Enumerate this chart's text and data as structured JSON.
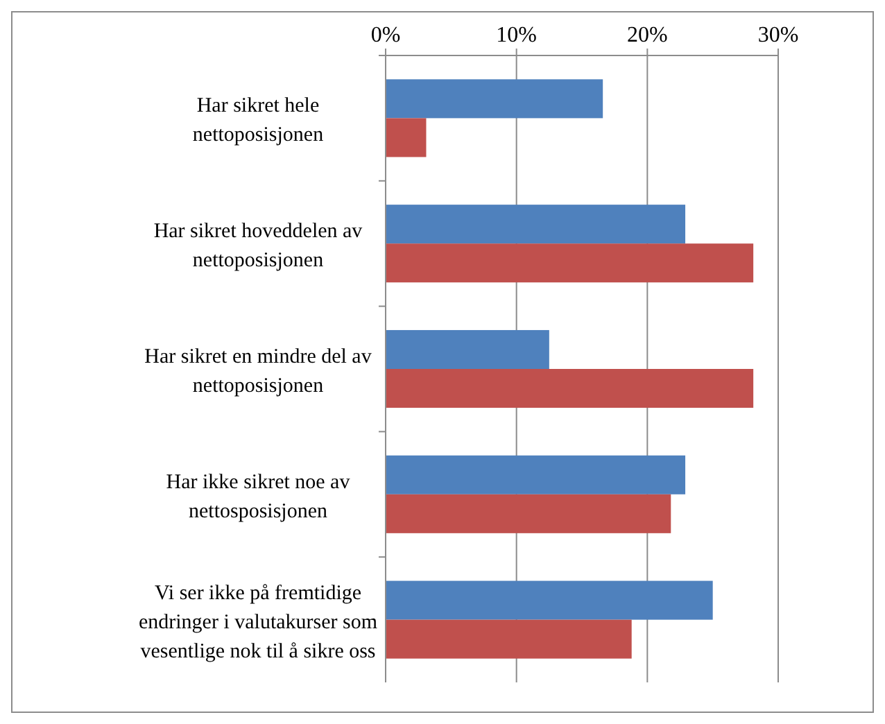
{
  "chart_data": {
    "type": "bar",
    "orientation": "horizontal",
    "categories": [
      "Har sikret hele nettoposisjonen",
      "Har sikret hoveddelen av nettoposisjonen",
      "Har sikret en mindre del av nettoposisjonen",
      "Har ikke sikret noe av nettosposisjonen",
      "Vi ser ikke på fremtidige endringer i valutakurser som vesentlige nok til å sikre oss"
    ],
    "series": [
      {
        "color": "#4f81bd",
        "values": [
          16.6,
          22.9,
          12.5,
          22.9,
          25.0
        ]
      },
      {
        "color": "#c0504d",
        "values": [
          3.1,
          28.1,
          28.1,
          21.8,
          18.8
        ]
      }
    ],
    "xlim": [
      0,
      30
    ],
    "xticks": [
      {
        "value": 0,
        "label": "0%"
      },
      {
        "value": 10,
        "label": "10%"
      },
      {
        "value": 20,
        "label": "20%"
      },
      {
        "value": 30,
        "label": "30%"
      }
    ],
    "grid": "x"
  }
}
